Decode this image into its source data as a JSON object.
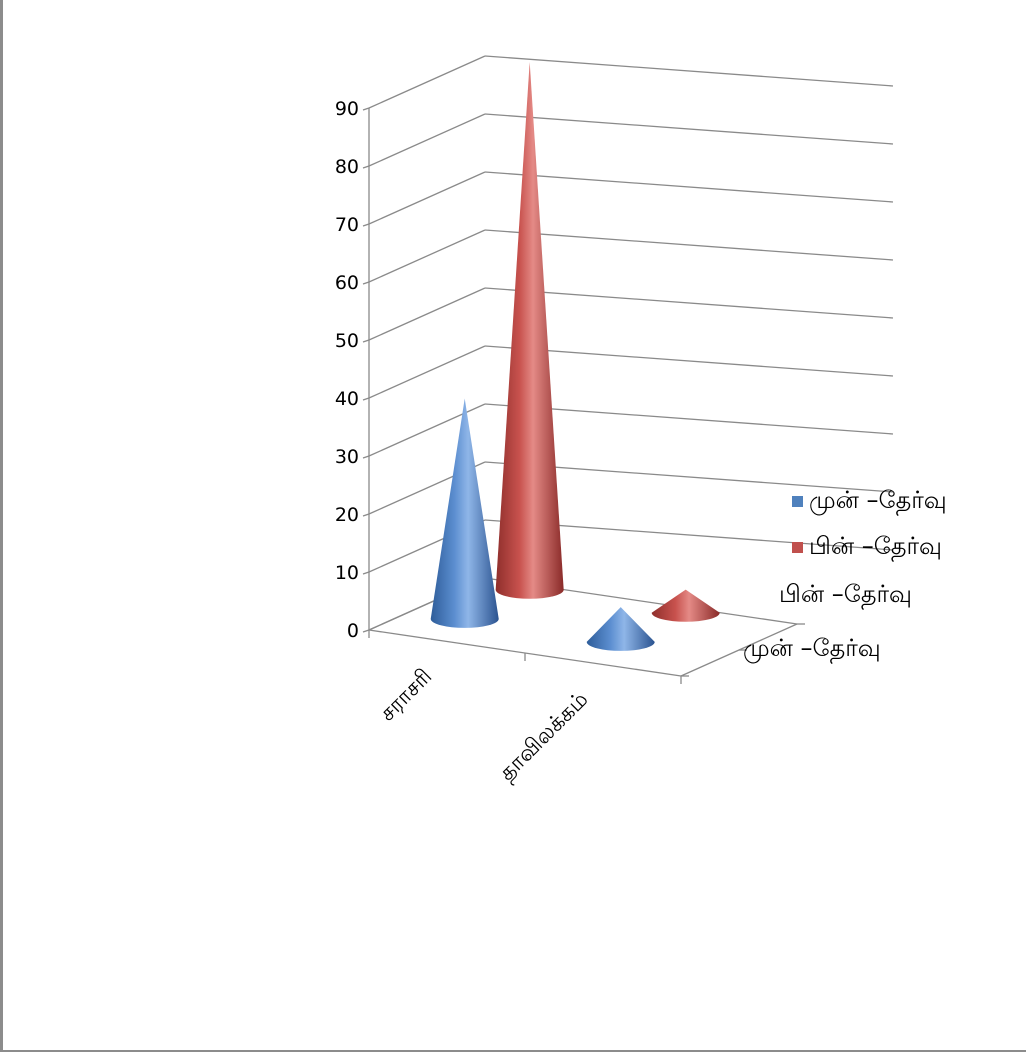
{
  "chart_data": {
    "type": "bar",
    "bar_shape": "cone-3d",
    "categories": [
      "சராசரி",
      "தாவிலக்கம்"
    ],
    "series": [
      {
        "name": "முன் –தேர்வு",
        "values": [
          38,
          6
        ],
        "color": "#4f81bd"
      },
      {
        "name": "பின் –தேர்வு",
        "values": [
          91,
          4
        ],
        "color": "#c0504d"
      }
    ],
    "y_ticks": [
      "0",
      "10",
      "20",
      "30",
      "40",
      "50",
      "60",
      "70",
      "80",
      "90"
    ],
    "ylim": [
      0,
      90
    ],
    "grid": true,
    "legend": {
      "position": "right",
      "entries": [
        "முன் –தேர்வு",
        "பின் –தேர்வு"
      ]
    },
    "depth_labels": [
      "பின் –தேர்வு",
      "முன் –தேர்வு"
    ]
  }
}
